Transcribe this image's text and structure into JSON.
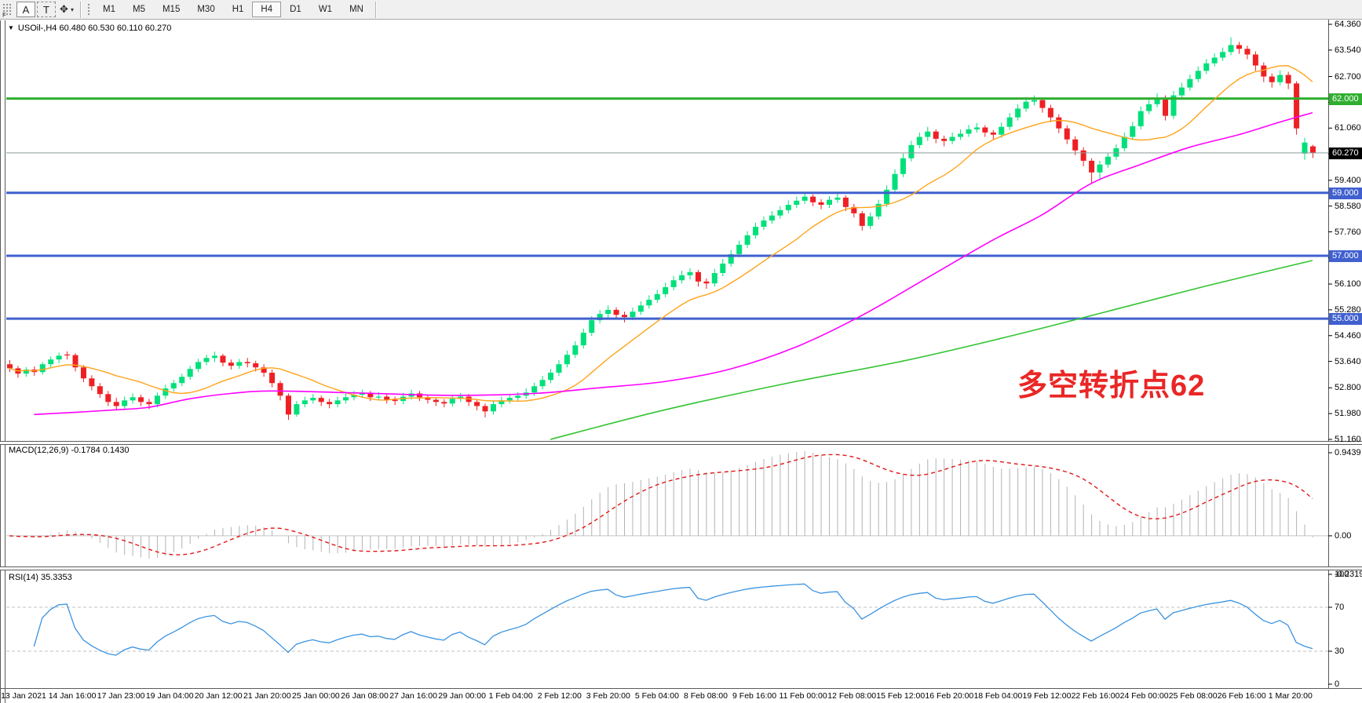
{
  "toolbar": {
    "corner_label": "F",
    "buttons": {
      "font": "A",
      "text": "T",
      "cursor": "✥",
      "caret": "▾"
    },
    "timeframes": [
      "M1",
      "M5",
      "M15",
      "M30",
      "H1",
      "H4",
      "D1",
      "W1",
      "MN"
    ],
    "active_timeframe": "H4"
  },
  "header": {
    "collapse_icon": "▼",
    "title": "USOil-,H4  60.480 60.530 60.110 60.270",
    "symbol": "USOil-",
    "timeframe": "H4",
    "open": "60.480",
    "high": "60.530",
    "low": "60.110",
    "close": "60.270"
  },
  "price_axis": {
    "ticks": [
      "64.360",
      "63.540",
      "62.700",
      "61.880",
      "61.060",
      "60.240",
      "59.400",
      "58.580",
      "57.760",
      "56.940",
      "56.100",
      "55.280",
      "54.460",
      "53.640",
      "52.800",
      "51.980",
      "51.160"
    ],
    "boxes": [
      {
        "label": "62.000",
        "price": 62.0,
        "bg": "#2fae2f"
      },
      {
        "label": "60.270",
        "price": 60.27,
        "bg": "#000000"
      },
      {
        "label": "59.000",
        "price": 59.0,
        "bg": "#4060cf"
      },
      {
        "label": "57.000",
        "price": 57.0,
        "bg": "#4060cf"
      },
      {
        "label": "55.000",
        "price": 55.0,
        "bg": "#4060cf"
      }
    ]
  },
  "indicators": {
    "macd": {
      "label": "MACD(12,26,9) -0.1784 0.1430",
      "params": [
        12,
        26,
        9
      ],
      "value_main": -0.1784,
      "value_signal": 0.143,
      "axis": [
        "0.9439",
        "0.00",
        "-0.2319"
      ]
    },
    "rsi": {
      "label": "RSI(14) 35.3353",
      "period": 14,
      "value": 35.3353,
      "axis": [
        100,
        70,
        30,
        0
      ],
      "levels": [
        70,
        30
      ]
    }
  },
  "annotation": {
    "text": "多空转折点62",
    "color": "#ea2626"
  },
  "colors": {
    "bull": "#00e07a",
    "bear": "#ee2024",
    "ma_fast": "#ffa31a",
    "ma_mid": "#ff00ff",
    "ma_slow": "#33c433",
    "hline_blue": "#4060cf",
    "hline_green": "#2fae2f",
    "price_line": "#8a9a9a",
    "macd_bar": "#b3b3b3",
    "macd_signal": "#e01818",
    "macd_zero": "#c4c4c4",
    "rsi_line": "#3a93e0",
    "level_dash": "#c0c0c0",
    "axis_line": "#5a5a5a"
  },
  "chart_data": {
    "type": "candlestick",
    "symbol": "USOil",
    "timeframe": "H4",
    "title": "USOil-,H4  60.480 60.530 60.110 60.270",
    "price_range": {
      "max": 64.36,
      "min": 51.16
    },
    "hlines": [
      {
        "price": 62.0,
        "style": "green",
        "width": 3
      },
      {
        "price": 59.0,
        "style": "blue",
        "width": 3
      },
      {
        "price": 57.0,
        "style": "blue",
        "width": 3
      },
      {
        "price": 55.0,
        "style": "blue",
        "width": 3
      },
      {
        "price": 60.27,
        "style": "current",
        "width": 1
      }
    ],
    "candles": [
      [
        53.55,
        53.68,
        53.3,
        53.42
      ],
      [
        53.42,
        53.5,
        53.12,
        53.25
      ],
      [
        53.25,
        53.46,
        53.15,
        53.38
      ],
      [
        53.38,
        53.48,
        53.18,
        53.3
      ],
      [
        53.3,
        53.62,
        53.22,
        53.55
      ],
      [
        53.55,
        53.8,
        53.45,
        53.7
      ],
      [
        53.7,
        53.92,
        53.58,
        53.82
      ],
      [
        53.86,
        53.96,
        53.7,
        53.84
      ],
      [
        53.84,
        53.9,
        53.32,
        53.45
      ],
      [
        53.45,
        53.52,
        52.98,
        53.1
      ],
      [
        53.1,
        53.2,
        52.72,
        52.85
      ],
      [
        52.85,
        52.95,
        52.48,
        52.6
      ],
      [
        52.6,
        52.7,
        52.22,
        52.35
      ],
      [
        52.35,
        52.48,
        52.08,
        52.22
      ],
      [
        52.22,
        52.52,
        52.12,
        52.4
      ],
      [
        52.4,
        52.62,
        52.3,
        52.5
      ],
      [
        52.5,
        52.58,
        52.22,
        52.35
      ],
      [
        52.35,
        52.45,
        52.12,
        52.28
      ],
      [
        52.28,
        52.65,
        52.18,
        52.55
      ],
      [
        52.55,
        52.9,
        52.45,
        52.78
      ],
      [
        52.78,
        53.05,
        52.68,
        52.95
      ],
      [
        52.95,
        53.25,
        52.85,
        53.15
      ],
      [
        53.15,
        53.5,
        53.05,
        53.4
      ],
      [
        53.4,
        53.72,
        53.3,
        53.62
      ],
      [
        53.62,
        53.85,
        53.52,
        53.75
      ],
      [
        53.75,
        53.95,
        53.62,
        53.82
      ],
      [
        53.82,
        53.88,
        53.48,
        53.6
      ],
      [
        53.6,
        53.7,
        53.38,
        53.5
      ],
      [
        53.5,
        53.72,
        53.4,
        53.62
      ],
      [
        53.62,
        53.75,
        53.45,
        53.58
      ],
      [
        53.58,
        53.66,
        53.32,
        53.45
      ],
      [
        53.45,
        53.55,
        53.15,
        53.28
      ],
      [
        53.28,
        53.38,
        52.82,
        52.95
      ],
      [
        52.95,
        53.02,
        52.4,
        52.55
      ],
      [
        52.55,
        52.62,
        51.78,
        51.95
      ],
      [
        51.95,
        52.38,
        51.88,
        52.28
      ],
      [
        52.28,
        52.52,
        52.18,
        52.4
      ],
      [
        52.4,
        52.6,
        52.3,
        52.48
      ],
      [
        52.48,
        52.55,
        52.22,
        52.35
      ],
      [
        52.35,
        52.45,
        52.15,
        52.28
      ],
      [
        52.28,
        52.52,
        52.18,
        52.4
      ],
      [
        52.4,
        52.62,
        52.3,
        52.5
      ],
      [
        52.5,
        52.7,
        52.4,
        52.58
      ],
      [
        52.58,
        52.74,
        52.48,
        52.62
      ],
      [
        52.62,
        52.7,
        52.38,
        52.5
      ],
      [
        52.5,
        52.66,
        52.4,
        52.52
      ],
      [
        52.52,
        52.6,
        52.3,
        52.42
      ],
      [
        52.42,
        52.52,
        52.25,
        52.38
      ],
      [
        52.38,
        52.64,
        52.28,
        52.52
      ],
      [
        52.52,
        52.74,
        52.42,
        52.62
      ],
      [
        52.62,
        52.7,
        52.38,
        52.5
      ],
      [
        52.5,
        52.58,
        52.3,
        52.42
      ],
      [
        52.42,
        52.5,
        52.22,
        52.35
      ],
      [
        52.35,
        52.44,
        52.18,
        52.3
      ],
      [
        52.3,
        52.56,
        52.2,
        52.45
      ],
      [
        52.45,
        52.64,
        52.35,
        52.52
      ],
      [
        52.52,
        52.6,
        52.22,
        52.35
      ],
      [
        52.35,
        52.42,
        52.08,
        52.22
      ],
      [
        52.22,
        52.3,
        51.86,
        52.05
      ],
      [
        52.05,
        52.4,
        51.95,
        52.28
      ],
      [
        52.28,
        52.52,
        52.18,
        52.4
      ],
      [
        52.4,
        52.6,
        52.3,
        52.48
      ],
      [
        52.48,
        52.66,
        52.38,
        52.55
      ],
      [
        52.55,
        52.78,
        52.45,
        52.65
      ],
      [
        52.65,
        52.96,
        52.55,
        52.85
      ],
      [
        52.85,
        53.18,
        52.75,
        53.05
      ],
      [
        53.05,
        53.4,
        52.95,
        53.28
      ],
      [
        53.28,
        53.68,
        53.18,
        53.55
      ],
      [
        53.55,
        53.98,
        53.45,
        53.85
      ],
      [
        53.85,
        54.28,
        53.75,
        54.15
      ],
      [
        54.15,
        54.68,
        54.05,
        54.55
      ],
      [
        54.55,
        55.08,
        54.45,
        54.95
      ],
      [
        54.95,
        55.28,
        54.85,
        55.15
      ],
      [
        55.15,
        55.42,
        55.02,
        55.28
      ],
      [
        55.28,
        55.36,
        54.98,
        55.12
      ],
      [
        55.12,
        55.22,
        54.88,
        55.05
      ],
      [
        55.05,
        55.35,
        54.95,
        55.22
      ],
      [
        55.22,
        55.55,
        55.12,
        55.42
      ],
      [
        55.42,
        55.74,
        55.32,
        55.6
      ],
      [
        55.6,
        55.92,
        55.5,
        55.78
      ],
      [
        55.78,
        56.14,
        55.68,
        56.0
      ],
      [
        56.0,
        56.36,
        55.9,
        56.22
      ],
      [
        56.22,
        56.52,
        56.12,
        56.38
      ],
      [
        56.38,
        56.6,
        56.25,
        56.48
      ],
      [
        56.48,
        56.55,
        56.02,
        56.18
      ],
      [
        56.18,
        56.28,
        55.95,
        56.12
      ],
      [
        56.12,
        56.58,
        56.02,
        56.45
      ],
      [
        56.45,
        56.9,
        56.35,
        56.75
      ],
      [
        56.75,
        57.18,
        56.65,
        57.05
      ],
      [
        57.05,
        57.48,
        56.95,
        57.35
      ],
      [
        57.35,
        57.78,
        57.25,
        57.65
      ],
      [
        57.65,
        58.05,
        57.55,
        57.92
      ],
      [
        57.92,
        58.25,
        57.82,
        58.12
      ],
      [
        58.12,
        58.42,
        58.02,
        58.28
      ],
      [
        58.28,
        58.58,
        58.18,
        58.45
      ],
      [
        58.45,
        58.76,
        58.35,
        58.62
      ],
      [
        58.62,
        58.88,
        58.52,
        58.75
      ],
      [
        58.75,
        59.02,
        58.65,
        58.88
      ],
      [
        58.88,
        58.95,
        58.58,
        58.7
      ],
      [
        58.7,
        58.8,
        58.48,
        58.62
      ],
      [
        58.62,
        58.9,
        58.52,
        58.78
      ],
      [
        58.78,
        58.98,
        58.68,
        58.85
      ],
      [
        58.85,
        58.92,
        58.42,
        58.55
      ],
      [
        58.55,
        58.65,
        58.22,
        58.35
      ],
      [
        58.35,
        58.42,
        57.8,
        57.95
      ],
      [
        57.95,
        58.38,
        57.85,
        58.25
      ],
      [
        58.25,
        58.78,
        58.15,
        58.65
      ],
      [
        58.65,
        59.24,
        58.55,
        59.1
      ],
      [
        59.1,
        59.75,
        59.0,
        59.6
      ],
      [
        59.6,
        60.25,
        59.5,
        60.1
      ],
      [
        60.1,
        60.66,
        60.0,
        60.52
      ],
      [
        60.52,
        60.92,
        60.42,
        60.78
      ],
      [
        60.78,
        61.1,
        60.65,
        60.95
      ],
      [
        60.95,
        61.02,
        60.58,
        60.72
      ],
      [
        60.72,
        60.82,
        60.48,
        60.65
      ],
      [
        60.65,
        60.92,
        60.55,
        60.78
      ],
      [
        60.78,
        61.02,
        60.68,
        60.88
      ],
      [
        60.88,
        61.16,
        60.78,
        61.02
      ],
      [
        61.02,
        61.22,
        60.92,
        61.08
      ],
      [
        61.08,
        61.15,
        60.78,
        60.92
      ],
      [
        60.92,
        61.0,
        60.7,
        60.85
      ],
      [
        60.85,
        61.24,
        60.75,
        61.1
      ],
      [
        61.1,
        61.54,
        61.0,
        61.4
      ],
      [
        61.4,
        61.82,
        61.3,
        61.68
      ],
      [
        61.68,
        62.04,
        61.58,
        61.9
      ],
      [
        61.9,
        62.1,
        61.78,
        61.95
      ],
      [
        61.95,
        62.02,
        61.55,
        61.7
      ],
      [
        61.7,
        61.8,
        61.25,
        61.4
      ],
      [
        61.4,
        61.5,
        60.9,
        61.05
      ],
      [
        61.05,
        61.15,
        60.55,
        60.7
      ],
      [
        60.7,
        60.8,
        60.2,
        60.35
      ],
      [
        60.35,
        60.45,
        59.85,
        60.02
      ],
      [
        60.02,
        60.1,
        59.3,
        59.65
      ],
      [
        59.65,
        60.02,
        59.45,
        59.9
      ],
      [
        59.9,
        60.28,
        59.8,
        60.15
      ],
      [
        60.15,
        60.55,
        60.05,
        60.42
      ],
      [
        60.42,
        60.92,
        60.32,
        60.78
      ],
      [
        60.78,
        61.26,
        60.68,
        61.12
      ],
      [
        61.12,
        61.75,
        61.02,
        61.6
      ],
      [
        61.6,
        61.96,
        61.5,
        61.82
      ],
      [
        61.82,
        62.16,
        61.72,
        62.02
      ],
      [
        62.02,
        62.1,
        61.3,
        61.45
      ],
      [
        61.45,
        62.24,
        61.35,
        62.1
      ],
      [
        62.1,
        62.5,
        62.0,
        62.35
      ],
      [
        62.35,
        62.76,
        62.25,
        62.62
      ],
      [
        62.62,
        63.02,
        62.52,
        62.88
      ],
      [
        62.88,
        63.26,
        62.78,
        63.12
      ],
      [
        63.12,
        63.44,
        63.02,
        63.3
      ],
      [
        63.3,
        63.62,
        63.2,
        63.48
      ],
      [
        63.48,
        63.95,
        63.38,
        63.7
      ],
      [
        63.7,
        63.8,
        63.42,
        63.58
      ],
      [
        63.58,
        63.68,
        63.25,
        63.4
      ],
      [
        63.4,
        63.5,
        62.88,
        63.05
      ],
      [
        63.05,
        63.15,
        62.52,
        62.7
      ],
      [
        62.7,
        62.8,
        62.35,
        62.52
      ],
      [
        62.52,
        62.9,
        62.42,
        62.75
      ],
      [
        62.75,
        62.85,
        62.3,
        62.48
      ],
      [
        62.48,
        62.55,
        60.85,
        61.05
      ],
      [
        60.25,
        60.75,
        60.05,
        60.6
      ],
      [
        60.48,
        60.53,
        60.11,
        60.27
      ]
    ],
    "ma_fast_period": 13,
    "ma_mid_points": [
      [
        3,
        51.95
      ],
      [
        8,
        52.02
      ],
      [
        13,
        52.1
      ],
      [
        17,
        52.18
      ],
      [
        22,
        52.45
      ],
      [
        27,
        52.62
      ],
      [
        32,
        52.7
      ],
      [
        42,
        52.64
      ],
      [
        54,
        52.56
      ],
      [
        64,
        52.62
      ],
      [
        72,
        52.8
      ],
      [
        80,
        53.0
      ],
      [
        88,
        53.4
      ],
      [
        96,
        54.1
      ],
      [
        104,
        55.1
      ],
      [
        112,
        56.3
      ],
      [
        120,
        57.5
      ],
      [
        126,
        58.3
      ],
      [
        132,
        59.3
      ],
      [
        138,
        59.9
      ],
      [
        144,
        60.45
      ],
      [
        150,
        60.85
      ],
      [
        155,
        61.25
      ],
      [
        159,
        61.55
      ]
    ],
    "ma_slow_points": [
      [
        66,
        51.16
      ],
      [
        80,
        52.1
      ],
      [
        95,
        52.95
      ],
      [
        109,
        53.65
      ],
      [
        123,
        54.5
      ],
      [
        138,
        55.5
      ],
      [
        147,
        56.1
      ],
      [
        159,
        56.85
      ]
    ],
    "time_labels": [
      "13 Jan 2021",
      "14 Jan 16:00",
      "17 Jan 23:00",
      "19 Jan 04:00",
      "20 Jan 12:00",
      "21 Jan 20:00",
      "25 Jan 00:00",
      "26 Jan 08:00",
      "27 Jan 16:00",
      "29 Jan 00:00",
      "1 Feb 04:00",
      "2 Feb 12:00",
      "3 Feb 20:00",
      "5 Feb 04:00",
      "8 Feb 08:00",
      "9 Feb 16:00",
      "11 Feb 00:00",
      "12 Feb 08:00",
      "15 Feb 12:00",
      "16 Feb 20:00",
      "18 Feb 04:00",
      "19 Feb 12:00",
      "22 Feb 16:00",
      "24 Feb 00:00",
      "25 Feb 08:00",
      "26 Feb 16:00",
      "1 Mar 20:00"
    ]
  }
}
